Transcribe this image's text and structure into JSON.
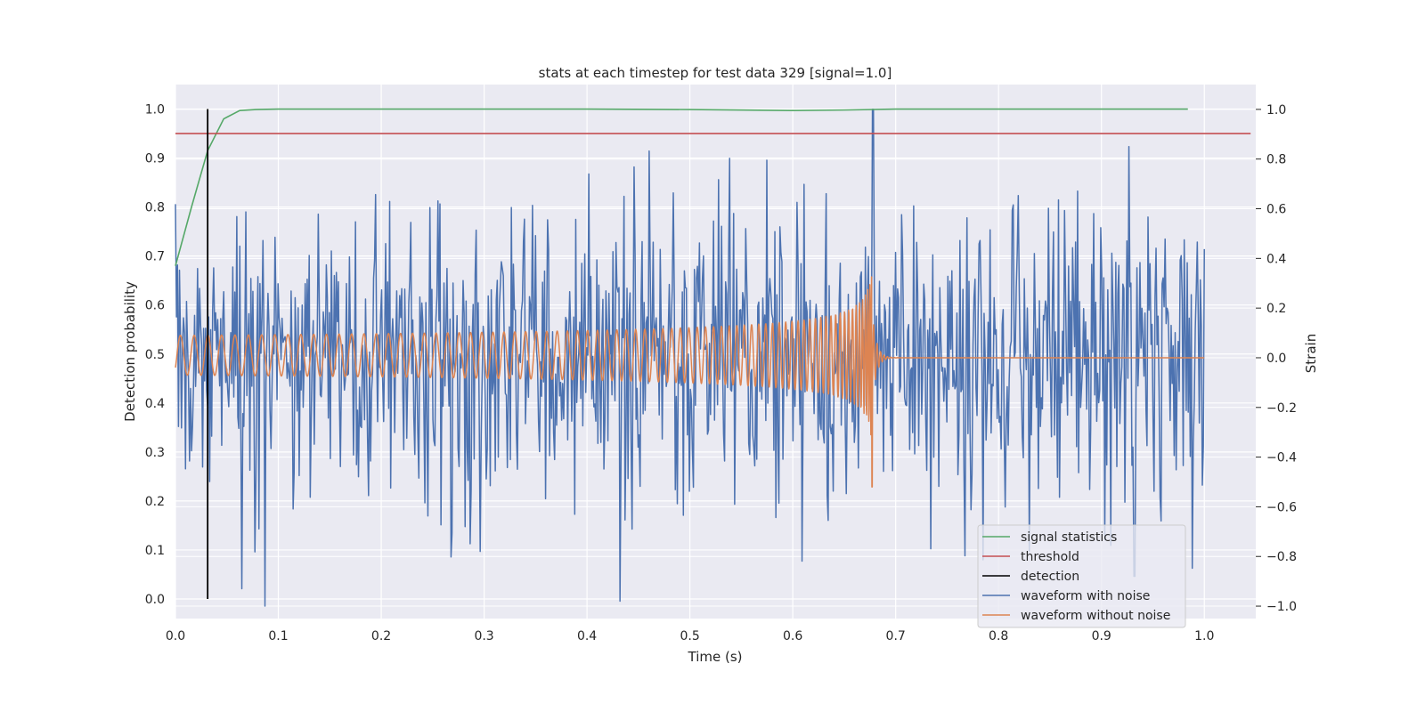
{
  "chart_data": {
    "type": "line",
    "title": "stats at each timestep for test data 329 [signal=1.0]",
    "xlabel": "Time (s)",
    "ylabel_left": "Detection probability",
    "ylabel_right": "Strain",
    "xlim": [
      0.0,
      1.05
    ],
    "ylim_left": [
      -0.04,
      1.05
    ],
    "ylim_right": [
      -1.05,
      1.1
    ],
    "xticks": [
      "0.0",
      "0.1",
      "0.2",
      "0.3",
      "0.4",
      "0.5",
      "0.6",
      "0.7",
      "0.8",
      "0.9",
      "1.0"
    ],
    "yticks_left": [
      "0.0",
      "0.1",
      "0.2",
      "0.3",
      "0.4",
      "0.5",
      "0.6",
      "0.7",
      "0.8",
      "0.9",
      "1.0"
    ],
    "yticks_right": [
      "−1.0",
      "−0.8",
      "−0.6",
      "−0.4",
      "−0.2",
      "0.0",
      "0.2",
      "0.4",
      "0.6",
      "0.8",
      "1.0"
    ],
    "grid": true,
    "legend_position": "lower-right",
    "colors": {
      "signal_statistics": "#55a868",
      "threshold": "#c44e52",
      "detection": "#000000",
      "waveform_with_noise": "#4c72b0",
      "waveform_without_noise": "#dd8452",
      "plot_background": "#eaeaf2",
      "grid": "#ffffff"
    },
    "series": [
      {
        "name": "signal statistics",
        "axis": "left",
        "x": [
          0.0,
          0.0156,
          0.0313,
          0.0469,
          0.0625,
          0.0781,
          0.1,
          0.2,
          0.3,
          0.4,
          0.5,
          0.6,
          0.65,
          0.7,
          0.8,
          0.9,
          0.984
        ],
        "y": [
          0.68,
          0.8,
          0.915,
          0.98,
          0.997,
          0.999,
          1.0,
          1.0,
          1.0,
          1.0,
          0.999,
          0.997,
          0.998,
          1.0,
          1.0,
          1.0,
          1.0
        ]
      },
      {
        "name": "threshold",
        "axis": "left",
        "x": [
          0.0,
          1.045
        ],
        "y": [
          0.95,
          0.95
        ]
      },
      {
        "name": "detection",
        "axis": "left",
        "x": [
          0.0313,
          0.0313
        ],
        "y": [
          0.0,
          1.0
        ]
      },
      {
        "name": "waveform with noise",
        "axis": "right",
        "x_range": [
          0.0,
          1.0
        ],
        "peaks": [
          {
            "x": 0.678,
            "y": 1.0
          },
          {
            "x": 0.927,
            "y": 0.85
          },
          {
            "x": 0.0645,
            "y": -0.93
          },
          {
            "x": 0.296,
            "y": -0.78
          },
          {
            "x": 0.932,
            "y": -0.88
          },
          {
            "x": 0.402,
            "y": 0.74
          }
        ],
        "noise_amplitude": 0.3
      },
      {
        "name": "waveform without noise",
        "axis": "right",
        "x_range": [
          0.0,
          1.0
        ],
        "chirp_merger_time": 0.677,
        "amplitude_start": 0.08,
        "amplitude_peak": 0.35,
        "peak_min": -0.52
      }
    ]
  }
}
